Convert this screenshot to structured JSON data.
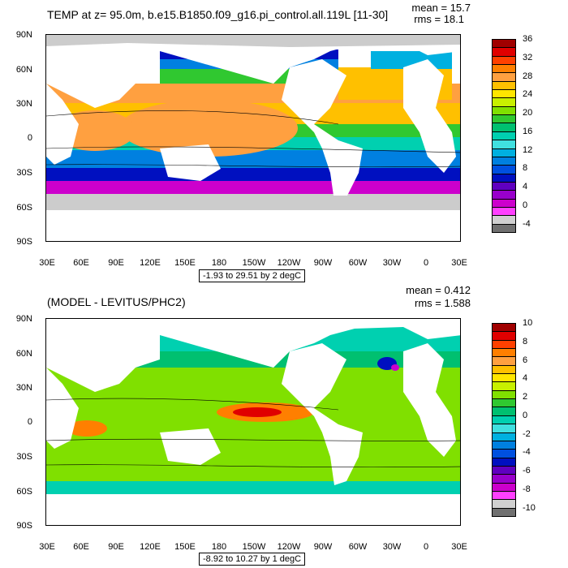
{
  "panels": [
    {
      "title": "TEMP at z=  95.0m, b.e15.B1850.f09_g16.pi_control.all.119L [11-30]",
      "mean": "mean = 15.7",
      "rms": "rms = 18.1",
      "range": "-1.93 to 29.51 by 2 degC",
      "colorbar_labels": [
        "36",
        "32",
        "28",
        "24",
        "20",
        "16",
        "12",
        "8",
        "4",
        "0",
        "-4"
      ],
      "colorbar_colors": [
        "#a00000",
        "#e00000",
        "#ff4000",
        "#ff7f00",
        "#ffa040",
        "#ffc000",
        "#ffe600",
        "#c8f000",
        "#80e000",
        "#30c830",
        "#00c070",
        "#00d0b0",
        "#40e0e0",
        "#00b0e0",
        "#0080e0",
        "#0050e0",
        "#0010c0",
        "#6000c0",
        "#9900cc",
        "#cc00cc",
        "#ff40ff",
        "#d0d0d0",
        "#707070"
      ],
      "colors": {
        "land": "#ffffff",
        "ice": "#cccccc"
      }
    },
    {
      "title": "(MODEL - LEVITUS/PHC2)",
      "mean": "mean = 0.412",
      "rms": "rms = 1.588",
      "range": "-8.92 to 10.27 by 1 degC",
      "colorbar_labels": [
        "10",
        "8",
        "6",
        "4",
        "2",
        "0",
        "-2",
        "-4",
        "-6",
        "-8",
        "-10"
      ],
      "colorbar_colors": [
        "#a00000",
        "#e00000",
        "#ff4000",
        "#ff7f00",
        "#ffa040",
        "#ffc000",
        "#ffe600",
        "#c8f000",
        "#80e000",
        "#30c830",
        "#00c070",
        "#00d0b0",
        "#40e0e0",
        "#00b0e0",
        "#0080e0",
        "#0050e0",
        "#0010c0",
        "#6000c0",
        "#9900cc",
        "#cc00cc",
        "#ff40ff",
        "#d0d0d0",
        "#707070"
      ],
      "colors": {
        "land": "#ffffff",
        "ice": "#cccccc"
      }
    }
  ],
  "axes": {
    "lat_labels": [
      "90N",
      "60N",
      "30N",
      "0",
      "30S",
      "60S",
      "90S"
    ],
    "lon_labels": [
      "30E",
      "60E",
      "90E",
      "120E",
      "150E",
      "180",
      "150W",
      "120W",
      "90W",
      "60W",
      "30W",
      "0",
      "30E"
    ]
  }
}
